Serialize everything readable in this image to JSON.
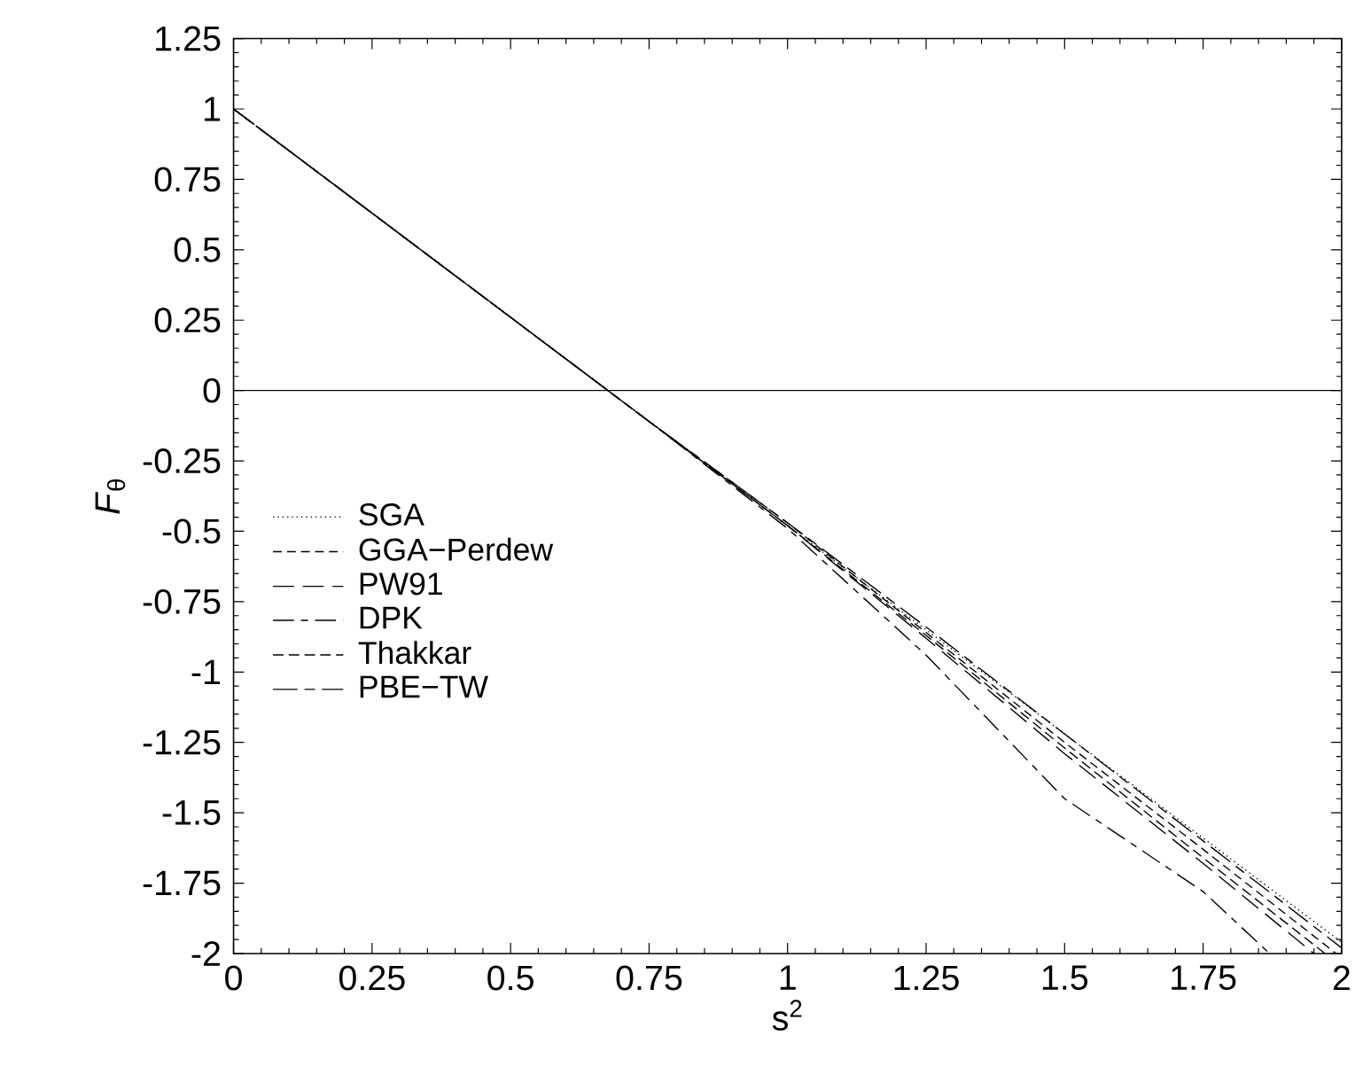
{
  "chart_data": {
    "type": "line",
    "xlabel": "s$^{2}$",
    "ylabel": "*F*$_{θ}$",
    "xlim": [
      0,
      2
    ],
    "ylim": [
      -2,
      1.25
    ],
    "xticks": [
      0,
      0.25,
      0.5,
      0.75,
      1,
      1.25,
      1.5,
      1.75,
      2
    ],
    "yticks": [
      -2,
      -1.75,
      -1.5,
      -1.25,
      -1,
      -0.75,
      -0.5,
      -0.25,
      0,
      0.25,
      0.5,
      0.75,
      1,
      1.25
    ],
    "grid": false,
    "legend": "left",
    "marker": "none",
    "ref_lines": [
      {
        "axis": "y",
        "value": 0,
        "color": "#000000",
        "line_style": "solid"
      }
    ],
    "series": [
      {
        "name": "SGA",
        "color": "#000000",
        "line_style": "dotted",
        "x": [
          0,
          0.25,
          0.5,
          0.75,
          1,
          1.25,
          1.5,
          1.75,
          2
        ],
        "values": [
          1,
          0.63,
          0.26,
          -0.11,
          -0.48,
          -0.85,
          -1.22,
          -1.59,
          -1.96
        ]
      },
      {
        "name": "GGA−Perdew",
        "color": "#000000",
        "line_style": "dashed",
        "x": [
          0,
          0.25,
          0.5,
          0.75,
          1,
          1.25,
          1.5,
          1.75,
          1.99
        ],
        "values": [
          1,
          0.63,
          0.26,
          -0.11,
          -0.47,
          -0.86,
          -1.25,
          -1.63,
          -2
        ]
      },
      {
        "name": "PW91",
        "color": "#000000",
        "line_style": "dashed",
        "x": [
          0,
          0.25,
          0.5,
          0.75,
          1,
          1.25,
          1.5,
          1.75,
          1.95
        ],
        "values": [
          1,
          0.63,
          0.26,
          -0.11,
          -0.48,
          -0.88,
          -1.29,
          -1.68,
          -2
        ]
      },
      {
        "name": "DPK",
        "color": "#000000",
        "line_style": "dashed",
        "x": [
          0,
          0.25,
          0.5,
          0.75,
          1,
          1.25,
          1.5,
          1.75,
          1.87
        ],
        "values": [
          1,
          0.63,
          0.26,
          -0.11,
          -0.49,
          -0.94,
          -1.45,
          -1.78,
          -2
        ]
      },
      {
        "name": "Thakkar",
        "color": "#000000",
        "line_style": "dashed",
        "x": [
          0,
          0.25,
          0.5,
          0.75,
          1,
          1.25,
          1.5,
          1.75,
          1.97
        ],
        "values": [
          1,
          0.63,
          0.26,
          -0.11,
          -0.48,
          -0.87,
          -1.27,
          -1.66,
          -2
        ]
      },
      {
        "name": "PBE−TW",
        "color": "#000000",
        "line_style": "dashed",
        "x": [
          0,
          0.25,
          0.5,
          0.75,
          1,
          1.25,
          1.5,
          1.75,
          2
        ],
        "values": [
          1,
          0.63,
          0.26,
          -0.11,
          -0.47,
          -0.84,
          -1.22,
          -1.6,
          -1.98
        ]
      }
    ]
  }
}
